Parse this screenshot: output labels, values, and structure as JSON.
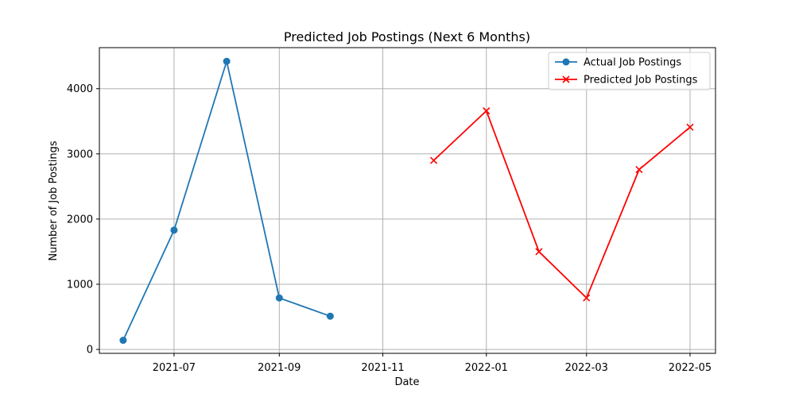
{
  "chart_data": {
    "type": "line",
    "title": "Predicted Job Postings (Next 6 Months)",
    "xlabel": "Date",
    "ylabel": "Number of Job Postings",
    "x_range": [
      "2021-05-18",
      "2022-05-16"
    ],
    "ylim": [
      -60,
      4630
    ],
    "grid": true,
    "legend_position": "top-right",
    "x_ticks": [
      {
        "date": "2021-07-01",
        "label": "2021-07"
      },
      {
        "date": "2021-09-01",
        "label": "2021-09"
      },
      {
        "date": "2021-11-01",
        "label": "2021-11"
      },
      {
        "date": "2022-01-01",
        "label": "2022-01"
      },
      {
        "date": "2022-03-01",
        "label": "2022-03"
      },
      {
        "date": "2022-05-01",
        "label": "2022-05"
      }
    ],
    "y_ticks": [
      {
        "value": 0,
        "label": "0"
      },
      {
        "value": 1000,
        "label": "1000"
      },
      {
        "value": 2000,
        "label": "2000"
      },
      {
        "value": 3000,
        "label": "3000"
      },
      {
        "value": 4000,
        "label": "4000"
      }
    ],
    "series": [
      {
        "name": "Actual Job Postings",
        "color": "#1f77b4",
        "marker": "circle",
        "points": [
          {
            "x": "2021-06-01",
            "y": 140
          },
          {
            "x": "2021-07-01",
            "y": 1830
          },
          {
            "x": "2021-08-01",
            "y": 4420
          },
          {
            "x": "2021-09-01",
            "y": 790
          },
          {
            "x": "2021-10-01",
            "y": 510
          }
        ]
      },
      {
        "name": "Predicted Job Postings",
        "color": "#ff0000",
        "marker": "x",
        "points": [
          {
            "x": "2021-12-01",
            "y": 2900
          },
          {
            "x": "2022-01-01",
            "y": 3660
          },
          {
            "x": "2022-02-01",
            "y": 1500
          },
          {
            "x": "2022-03-01",
            "y": 790
          },
          {
            "x": "2022-04-01",
            "y": 2760
          },
          {
            "x": "2022-05-01",
            "y": 3410
          }
        ]
      }
    ]
  }
}
